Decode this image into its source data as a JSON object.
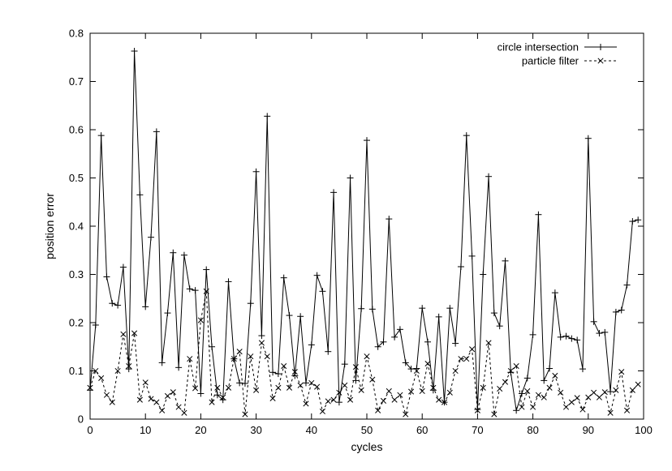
{
  "chart_data": {
    "type": "line",
    "title": "",
    "xlabel": "cycles",
    "ylabel": "position error",
    "xlim": [
      0,
      100
    ],
    "ylim": [
      0,
      0.8
    ],
    "x_ticks": [
      0,
      10,
      20,
      30,
      40,
      50,
      60,
      70,
      80,
      90,
      100
    ],
    "y_ticks": [
      0,
      0.1,
      0.2,
      0.3,
      0.4,
      0.5,
      0.6,
      0.7,
      0.8
    ],
    "x_tick_labels": [
      "0",
      "10",
      "20",
      "30",
      "40",
      "50",
      "60",
      "70",
      "80",
      "90",
      "100"
    ],
    "y_tick_labels": [
      "0",
      "0.1",
      "0.2",
      "0.3",
      "0.4",
      "0.5",
      "0.6",
      "0.7",
      "0.8"
    ],
    "grid": false,
    "legend_position": "top-right",
    "x": [
      0,
      1,
      2,
      3,
      4,
      5,
      6,
      7,
      8,
      9,
      10,
      11,
      12,
      13,
      14,
      15,
      16,
      17,
      18,
      19,
      20,
      21,
      22,
      23,
      24,
      25,
      26,
      27,
      28,
      29,
      30,
      31,
      32,
      33,
      34,
      35,
      36,
      37,
      38,
      39,
      40,
      41,
      42,
      43,
      44,
      45,
      46,
      47,
      48,
      49,
      50,
      51,
      52,
      53,
      54,
      55,
      56,
      57,
      58,
      59,
      60,
      61,
      62,
      63,
      64,
      65,
      66,
      67,
      68,
      69,
      70,
      71,
      72,
      73,
      74,
      75,
      76,
      77,
      78,
      79,
      80,
      81,
      82,
      83,
      84,
      85,
      86,
      87,
      88,
      89,
      90,
      91,
      92,
      93,
      94,
      95,
      96,
      97,
      98,
      99
    ],
    "series": [
      {
        "name": "circle intersection",
        "marker": "plus",
        "line_style": "solid",
        "color": "#000000",
        "values": [
          0.06,
          0.195,
          0.588,
          0.295,
          0.24,
          0.236,
          0.315,
          0.104,
          0.763,
          0.465,
          0.233,
          0.377,
          0.596,
          0.117,
          0.22,
          0.345,
          0.107,
          0.34,
          0.27,
          0.267,
          0.053,
          0.31,
          0.15,
          0.05,
          0.04,
          0.285,
          0.125,
          0.075,
          0.074,
          0.24,
          0.513,
          0.173,
          0.628,
          0.097,
          0.094,
          0.293,
          0.215,
          0.09,
          0.213,
          0.075,
          0.154,
          0.298,
          0.265,
          0.14,
          0.47,
          0.035,
          0.114,
          0.5,
          0.08,
          0.229,
          0.578,
          0.228,
          0.15,
          0.16,
          0.415,
          0.17,
          0.186,
          0.117,
          0.104,
          0.105,
          0.23,
          0.16,
          0.06,
          0.212,
          0.035,
          0.23,
          0.157,
          0.316,
          0.588,
          0.338,
          0.02,
          0.3,
          0.503,
          0.22,
          0.193,
          0.328,
          0.097,
          0.018,
          0.053,
          0.085,
          0.175,
          0.424,
          0.08,
          0.105,
          0.262,
          0.17,
          0.172,
          0.167,
          0.164,
          0.104,
          0.582,
          0.202,
          0.178,
          0.18,
          0.057,
          0.222,
          0.226,
          0.278,
          0.41,
          0.413
        ]
      },
      {
        "name": "particle filter",
        "marker": "cross",
        "line_style": "dashed",
        "color": "#000000",
        "values": [
          0.065,
          0.1,
          0.085,
          0.05,
          0.035,
          0.1,
          0.176,
          0.11,
          0.178,
          0.04,
          0.076,
          0.042,
          0.035,
          0.018,
          0.048,
          0.056,
          0.025,
          0.013,
          0.125,
          0.064,
          0.205,
          0.265,
          0.035,
          0.065,
          0.045,
          0.065,
          0.125,
          0.14,
          0.01,
          0.13,
          0.06,
          0.158,
          0.13,
          0.043,
          0.065,
          0.11,
          0.065,
          0.098,
          0.07,
          0.032,
          0.075,
          0.067,
          0.016,
          0.037,
          0.04,
          0.055,
          0.07,
          0.04,
          0.108,
          0.06,
          0.13,
          0.082,
          0.018,
          0.038,
          0.058,
          0.04,
          0.05,
          0.01,
          0.057,
          0.1,
          0.058,
          0.115,
          0.065,
          0.04,
          0.035,
          0.055,
          0.1,
          0.125,
          0.125,
          0.145,
          0.018,
          0.065,
          0.158,
          0.01,
          0.063,
          0.077,
          0.1,
          0.11,
          0.025,
          0.058,
          0.025,
          0.05,
          0.045,
          0.065,
          0.09,
          0.055,
          0.025,
          0.035,
          0.044,
          0.02,
          0.045,
          0.055,
          0.045,
          0.056,
          0.013,
          0.06,
          0.098,
          0.018,
          0.06,
          0.072
        ]
      }
    ]
  }
}
